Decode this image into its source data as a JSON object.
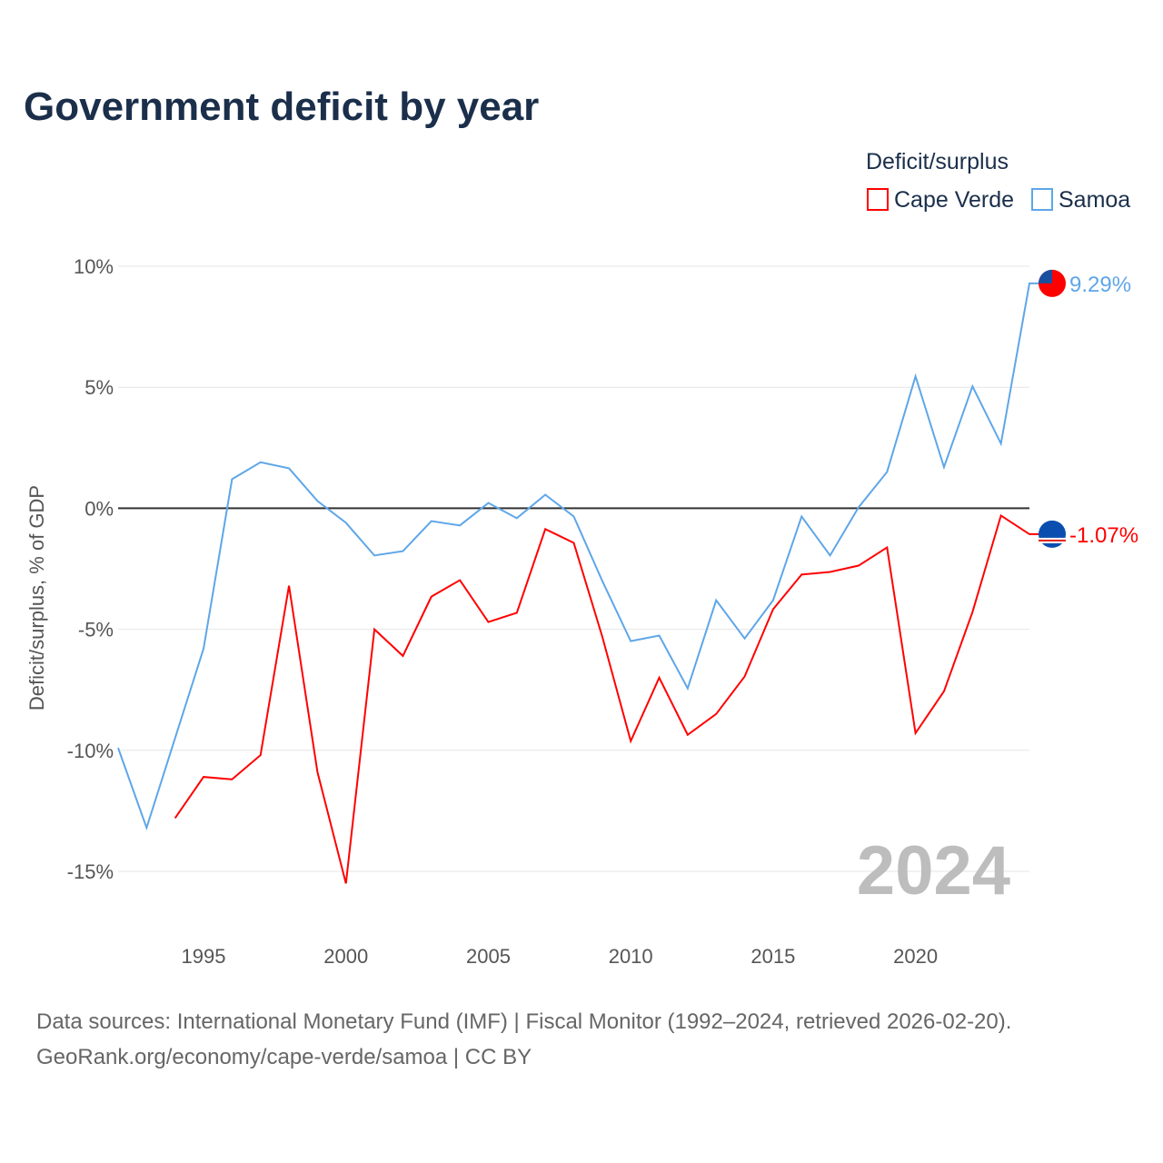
{
  "chart_data": {
    "type": "line",
    "title": "Government deficit by year",
    "xlabel": "",
    "ylabel": "Deficit/surplus, % of GDP",
    "xlim": [
      1992,
      2024
    ],
    "ylim": [
      -15,
      10
    ],
    "yticks": [
      10,
      5,
      0,
      -5,
      -10,
      -15
    ],
    "ytick_labels": [
      "10%",
      "5%",
      "0%",
      "-5%",
      "-10%",
      "-15%"
    ],
    "xticks": [
      1995,
      2000,
      2005,
      2010,
      2015,
      2020
    ],
    "xtick_labels": [
      "1995",
      "2000",
      "2005",
      "2010",
      "2015",
      "2020"
    ],
    "grid": true,
    "legend_title": "Deficit/surplus",
    "legend_position": "top-right",
    "year_watermark": "2024",
    "series": [
      {
        "name": "Cape Verde",
        "color": "#ff0000",
        "end_label": "-1.07%",
        "x": [
          1994,
          1995,
          1996,
          1997,
          1998,
          1999,
          2000,
          2001,
          2002,
          2003,
          2004,
          2005,
          2006,
          2007,
          2008,
          2009,
          2010,
          2011,
          2012,
          2013,
          2014,
          2015,
          2016,
          2017,
          2018,
          2019,
          2020,
          2021,
          2022,
          2023,
          2024
        ],
        "values": [
          -12.8,
          -11.1,
          -11.2,
          -10.2,
          -3.2,
          -10.9,
          -15.5,
          -5.0,
          -6.1,
          -3.65,
          -2.97,
          -4.7,
          -4.32,
          -0.86,
          -1.43,
          -5.3,
          -9.62,
          -7.0,
          -9.36,
          -8.5,
          -6.95,
          -4.17,
          -2.74,
          -2.63,
          -2.37,
          -1.62,
          -9.29,
          -7.56,
          -4.29,
          -0.3,
          -1.07
        ]
      },
      {
        "name": "Samoa",
        "color": "#5ea6e8",
        "end_label": "9.29%",
        "x": [
          1992,
          1993,
          1994,
          1995,
          1996,
          1997,
          1998,
          1999,
          2000,
          2001,
          2002,
          2003,
          2004,
          2005,
          2006,
          2007,
          2008,
          2009,
          2010,
          2011,
          2012,
          2013,
          2014,
          2015,
          2016,
          2017,
          2018,
          2019,
          2020,
          2021,
          2022,
          2023,
          2024
        ],
        "values": [
          -9.9,
          -13.2,
          -9.5,
          -5.8,
          1.2,
          1.9,
          1.65,
          0.3,
          -0.6,
          -1.95,
          -1.77,
          -0.53,
          -0.71,
          0.22,
          -0.41,
          0.56,
          -0.34,
          -3.0,
          -5.49,
          -5.26,
          -7.44,
          -3.8,
          -5.38,
          -3.8,
          -0.34,
          -1.95,
          0.04,
          1.5,
          5.45,
          1.7,
          5.04,
          2.67,
          9.29
        ]
      }
    ]
  },
  "footer": {
    "source": "Data sources: International Monetary Fund (IMF) | Fiscal Monitor (1992–2024, retrieved 2026-02-20).",
    "link": "GeoRank.org/economy/cape-verde/samoa | CC BY"
  }
}
